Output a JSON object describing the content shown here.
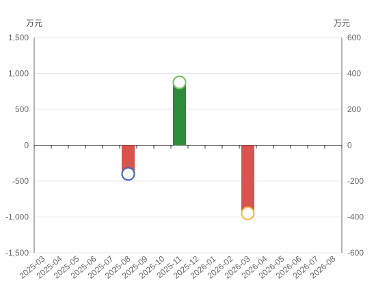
{
  "chart_data": {
    "type": "bar",
    "unit_left": "万元",
    "unit_right": "万元",
    "left_axis": {
      "min": -1500,
      "max": 1500,
      "ticks": [
        "1,500",
        "1,000",
        "500",
        "0",
        "-500",
        "-1,000",
        "-1,500"
      ]
    },
    "right_axis": {
      "min": -600,
      "max": 600,
      "ticks": [
        "600",
        "400",
        "200",
        "0",
        "-200",
        "-400",
        "-600"
      ]
    },
    "categories": [
      "2025-03",
      "2025-04",
      "2025-05",
      "2025-06",
      "2025-07",
      "2025-08",
      "2025-09",
      "2025-10",
      "2025-11",
      "2025-12",
      "2026-01",
      "2026-02",
      "2026-03",
      "2026-04",
      "2026-05",
      "2026-06",
      "2026-07",
      "2026-08"
    ],
    "series": [
      {
        "values": [
          0,
          0,
          0,
          0,
          0,
          -400,
          0,
          0,
          880,
          0,
          0,
          0,
          -950,
          0,
          0,
          0,
          0,
          0
        ]
      }
    ],
    "markers": [
      {
        "category": "2025-08",
        "value": -160,
        "axis": "right"
      },
      {
        "category": "2025-11",
        "value": 350,
        "axis": "right"
      },
      {
        "category": "2026-03",
        "value": -380,
        "axis": "right"
      }
    ],
    "colors": {
      "positive": "#2e8b3a",
      "negative": "#d9534f",
      "marker_neg1": "#4466bb",
      "marker_pos": "#7cc36b",
      "marker_neg2": "#f0b94a",
      "grid": "#e8e8e8",
      "axis": "#666666"
    },
    "grid": true
  }
}
